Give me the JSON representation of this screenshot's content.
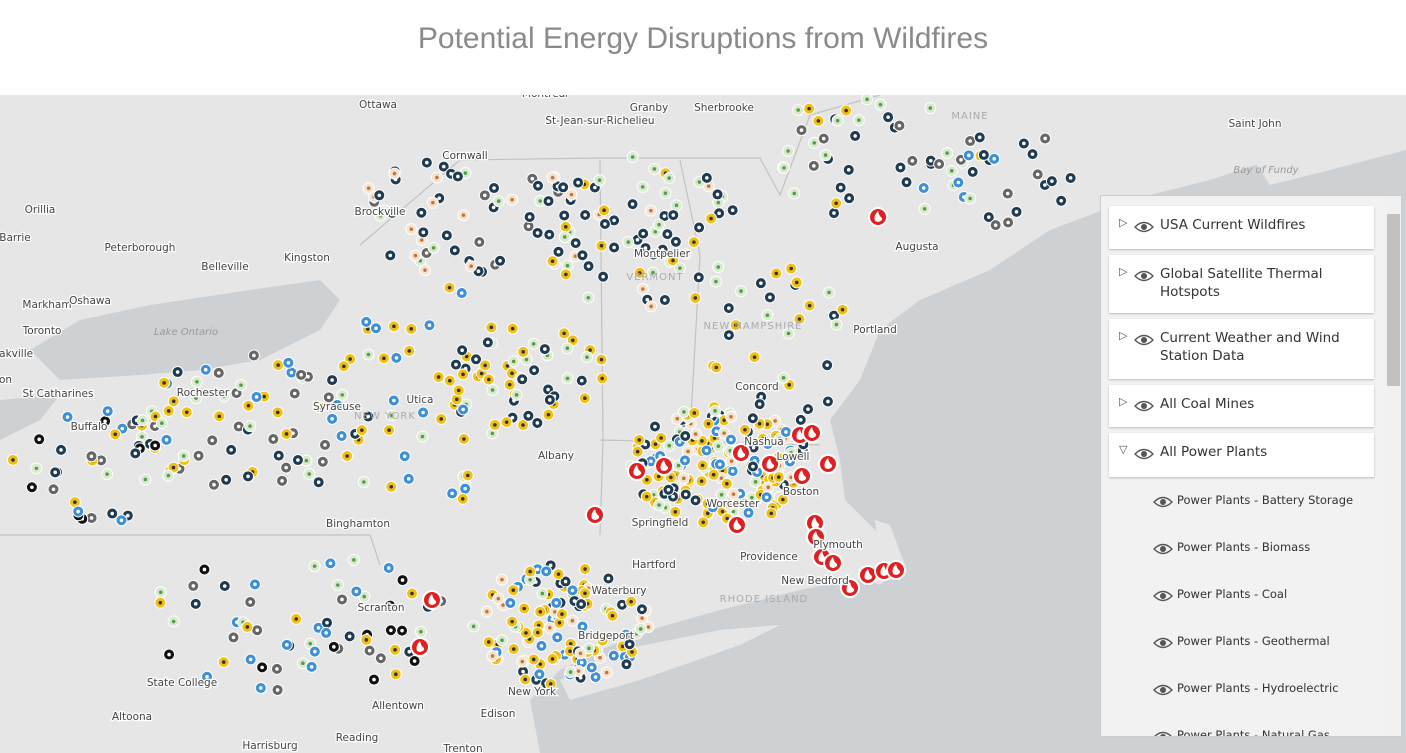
{
  "header": {
    "title": "Potential Energy Disruptions from Wildfires"
  },
  "map": {
    "city_labels": [
      "Ottawa",
      "Montreal",
      "St-Jean-sur-Richelieu",
      "Granby",
      "Sherbrooke",
      "Saint John",
      "Cornwall",
      "Orillia",
      "Brockville",
      "Barrie",
      "Peterborough",
      "Belleville",
      "Kingston",
      "Montpelier",
      "Augusta",
      "Markham",
      "Oshawa",
      "Toronto",
      "Portland",
      "Oakville",
      "Concord",
      "Milton",
      "St Catharines",
      "Rochester",
      "Syracuse",
      "Utica",
      "Buffalo",
      "Nashua",
      "Lowell",
      "Albany",
      "Boston",
      "Worcester",
      "Springfield",
      "Binghamton",
      "Plymouth",
      "Providence",
      "Hartford",
      "New Bedford",
      "Waterbury",
      "Scranton",
      "Bridgeport",
      "State College",
      "New York",
      "Allentown",
      "Edison",
      "Altoona",
      "Reading",
      "Harrisburg",
      "Trenton"
    ],
    "state_labels": [
      "MAINE",
      "VERMONT",
      "NEW HAMPSHIRE",
      "NEW YORK",
      "RHODE ISLAND"
    ],
    "water_labels": [
      "Lake Ontario",
      "Bay of Fundy"
    ]
  },
  "layers": {
    "items": [
      "USA Current Wildfires",
      "Global Satellite Thermal Hotspots",
      "Current Weather and Wind Station Data",
      "All Coal Mines",
      "All Power Plants"
    ],
    "sublayers": [
      "Power Plants - Battery Storage",
      "Power Plants - Biomass",
      "Power Plants - Coal",
      "Power Plants - Geothermal",
      "Power Plants - Hydroelectric",
      "Power Plants - Natural Gas"
    ]
  }
}
